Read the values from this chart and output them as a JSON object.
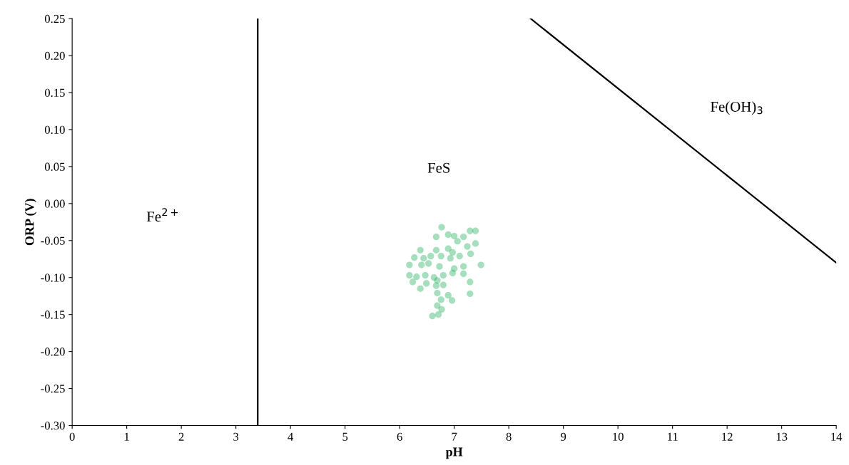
{
  "chart_data": {
    "type": "scatter",
    "xlabel": "pH",
    "ylabel": "ORP (V)",
    "xlim": [
      0,
      14
    ],
    "ylim": [
      -0.3,
      0.25
    ],
    "xticks": [
      0,
      1,
      2,
      3,
      4,
      5,
      6,
      7,
      8,
      9,
      10,
      11,
      12,
      13,
      14
    ],
    "yticks": [
      {
        "value": -0.3,
        "label": "-0.30"
      },
      {
        "value": -0.25,
        "label": "-0.25"
      },
      {
        "value": -0.2,
        "label": "-0.20"
      },
      {
        "value": -0.15,
        "label": "-0.15"
      },
      {
        "value": -0.1,
        "label": "-0.10"
      },
      {
        "value": -0.05,
        "label": "-0.05"
      },
      {
        "value": 0,
        "label": "0.00"
      },
      {
        "value": 0.05,
        "label": "0.05"
      },
      {
        "value": 0.1,
        "label": "0.10"
      },
      {
        "value": 0.15,
        "label": "0.15"
      },
      {
        "value": 0.2,
        "label": "0.20"
      },
      {
        "value": 0.25,
        "label": "0.25"
      }
    ],
    "grid": false,
    "series": [
      {
        "marker": "circle",
        "color": "#1fb05a",
        "x": [
          6.77,
          6.67,
          6.89,
          7.0,
          7.17,
          7.29,
          7.39,
          7.39,
          7.24,
          7.06,
          6.89,
          6.67,
          6.38,
          6.27,
          6.57,
          6.76,
          6.93,
          7.1,
          7.3,
          6.18,
          6.4,
          6.53,
          6.73,
          7.0,
          7.17,
          7.49,
          6.18,
          6.31,
          6.47,
          6.63,
          6.69,
          6.8,
          6.97,
          7.17,
          7.29,
          6.24,
          6.49,
          6.67,
          6.8,
          6.38,
          6.69,
          6.89,
          7.29,
          6.76,
          6.96,
          6.69,
          6.77,
          6.6,
          6.71,
          6.97,
          6.44
        ],
        "values": [
          -0.032,
          -0.045,
          -0.042,
          -0.044,
          -0.045,
          -0.037,
          -0.037,
          -0.054,
          -0.058,
          -0.051,
          -0.061,
          -0.063,
          -0.063,
          -0.073,
          -0.071,
          -0.071,
          -0.074,
          -0.071,
          -0.068,
          -0.083,
          -0.083,
          -0.081,
          -0.085,
          -0.088,
          -0.085,
          -0.083,
          -0.097,
          -0.099,
          -0.097,
          -0.1,
          -0.104,
          -0.097,
          -0.094,
          -0.095,
          -0.106,
          -0.106,
          -0.108,
          -0.111,
          -0.11,
          -0.115,
          -0.121,
          -0.124,
          -0.122,
          -0.13,
          -0.131,
          -0.138,
          -0.143,
          -0.152,
          -0.15,
          -0.066,
          -0.074
        ]
      },
      {
        "type": "line",
        "color": "#000000",
        "x": [
          3.4,
          3.4
        ],
        "values": [
          -0.3,
          0.25
        ]
      },
      {
        "type": "line",
        "color": "#000000",
        "x": [
          8.4,
          14
        ],
        "values": [
          0.25,
          -0.08
        ]
      }
    ],
    "annotations": [
      "Fe$^{2+}$",
      "FeS",
      "Fe(OH)$_{3}$"
    ]
  }
}
